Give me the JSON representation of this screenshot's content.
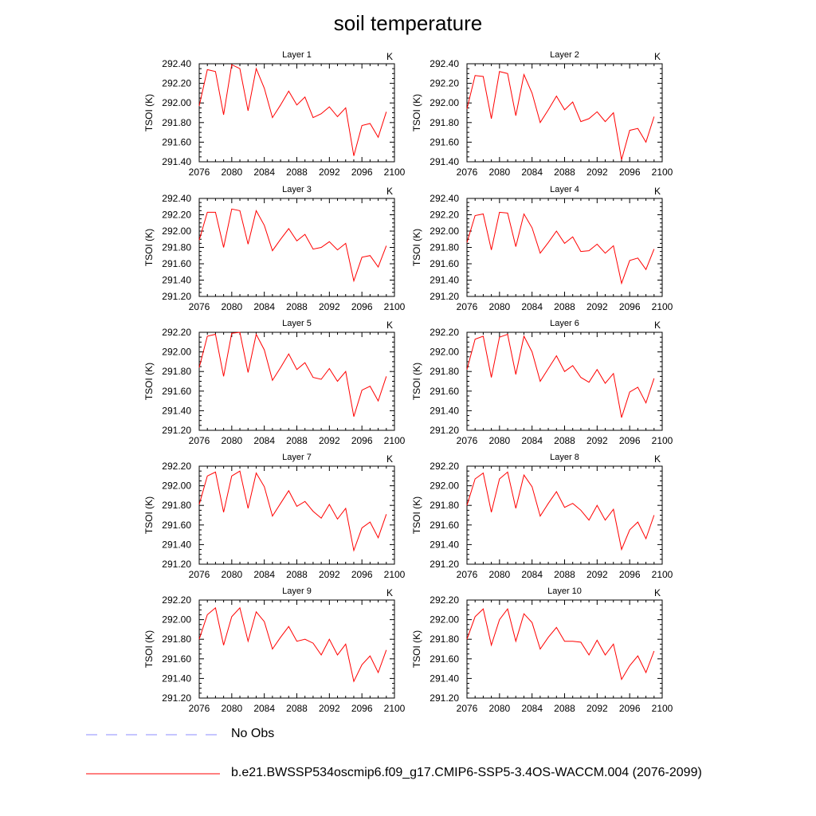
{
  "title": "soil temperature",
  "chart_data": {
    "type": "line",
    "figure_title": "soil temperature",
    "layout": "5 rows x 2 columns of panels",
    "shared": {
      "x": [
        2076,
        2077,
        2078,
        2079,
        2080,
        2081,
        2082,
        2083,
        2084,
        2085,
        2086,
        2087,
        2088,
        2089,
        2090,
        2091,
        2092,
        2093,
        2094,
        2095,
        2096,
        2097,
        2098,
        2099
      ],
      "xlim": [
        2076,
        2100
      ],
      "xticks": [
        "2076",
        "2080",
        "2084",
        "2088",
        "2092",
        "2096",
        "2100"
      ],
      "ylabel": "TSOI  (K)",
      "units": "K",
      "line_color": "#ff0000"
    },
    "panels": [
      {
        "title": "Layer 1",
        "ylim": [
          291.4,
          292.4
        ],
        "yticks": [
          "291.40",
          "291.60",
          "291.80",
          "292.00",
          "292.20",
          "292.40"
        ],
        "values": [
          291.97,
          292.34,
          292.32,
          291.88,
          292.39,
          292.35,
          291.92,
          292.35,
          292.15,
          291.85,
          291.98,
          292.12,
          291.98,
          292.06,
          291.85,
          291.89,
          291.96,
          291.86,
          291.95,
          291.46,
          291.77,
          291.79,
          291.65,
          291.91
        ]
      },
      {
        "title": "Layer 2",
        "ylim": [
          291.4,
          292.4
        ],
        "yticks": [
          "291.40",
          "291.60",
          "291.80",
          "292.00",
          "292.20",
          "292.40"
        ],
        "values": [
          291.94,
          292.28,
          292.27,
          291.84,
          292.32,
          292.3,
          291.87,
          292.29,
          292.1,
          291.8,
          291.93,
          292.07,
          291.93,
          292.01,
          291.81,
          291.84,
          291.91,
          291.81,
          291.9,
          291.42,
          291.72,
          291.74,
          291.6,
          291.86
        ]
      },
      {
        "title": "Layer 3",
        "ylim": [
          291.2,
          292.4
        ],
        "yticks": [
          "291.20",
          "291.40",
          "291.60",
          "291.80",
          "292.00",
          "292.20",
          "292.40"
        ],
        "values": [
          291.89,
          292.23,
          292.23,
          291.8,
          292.27,
          292.25,
          291.84,
          292.25,
          292.07,
          291.76,
          291.9,
          292.03,
          291.88,
          291.96,
          291.78,
          291.8,
          291.87,
          291.77,
          291.85,
          291.39,
          291.68,
          291.7,
          291.56,
          291.82
        ]
      },
      {
        "title": "Layer 4",
        "ylim": [
          291.2,
          292.4
        ],
        "yticks": [
          "291.20",
          "291.40",
          "291.60",
          "291.80",
          "292.00",
          "292.20",
          "292.40"
        ],
        "values": [
          291.86,
          292.19,
          292.21,
          291.77,
          292.23,
          292.22,
          291.81,
          292.21,
          292.04,
          291.73,
          291.86,
          292.0,
          291.85,
          291.93,
          291.75,
          291.76,
          291.84,
          291.73,
          291.82,
          291.36,
          291.64,
          291.67,
          291.53,
          291.78
        ]
      },
      {
        "title": "Layer 5",
        "ylim": [
          291.2,
          292.2
        ],
        "yticks": [
          "291.20",
          "291.40",
          "291.60",
          "291.80",
          "292.00",
          "292.20"
        ],
        "values": [
          291.84,
          292.16,
          292.18,
          291.75,
          292.19,
          292.2,
          291.79,
          292.18,
          292.02,
          291.71,
          291.84,
          291.98,
          291.82,
          291.89,
          291.74,
          291.72,
          291.83,
          291.7,
          291.8,
          291.34,
          291.61,
          291.65,
          291.5,
          291.75
        ]
      },
      {
        "title": "Layer 6",
        "ylim": [
          291.2,
          292.2
        ],
        "yticks": [
          "291.20",
          "291.40",
          "291.60",
          "291.80",
          "292.00",
          "292.20"
        ],
        "values": [
          291.82,
          292.13,
          292.16,
          291.74,
          292.15,
          292.18,
          291.77,
          292.16,
          292.0,
          291.7,
          291.83,
          291.96,
          291.8,
          291.86,
          291.74,
          291.69,
          291.82,
          291.68,
          291.78,
          291.33,
          291.59,
          291.64,
          291.48,
          291.73
        ]
      },
      {
        "title": "Layer 7",
        "ylim": [
          291.2,
          292.2
        ],
        "yticks": [
          "291.20",
          "291.40",
          "291.60",
          "291.80",
          "292.00",
          "292.20"
        ],
        "values": [
          291.81,
          292.1,
          292.14,
          291.73,
          292.1,
          292.15,
          291.77,
          292.13,
          291.99,
          291.69,
          291.82,
          291.95,
          291.79,
          291.84,
          291.74,
          291.67,
          291.81,
          291.66,
          291.77,
          291.34,
          291.57,
          291.63,
          291.47,
          291.71
        ]
      },
      {
        "title": "Layer 8",
        "ylim": [
          291.2,
          292.2
        ],
        "yticks": [
          "291.20",
          "291.40",
          "291.60",
          "291.80",
          "292.00",
          "292.20"
        ],
        "values": [
          291.8,
          292.07,
          292.13,
          291.73,
          292.07,
          292.14,
          291.77,
          292.11,
          291.99,
          291.69,
          291.82,
          291.94,
          291.78,
          291.82,
          291.75,
          291.65,
          291.8,
          291.65,
          291.76,
          291.35,
          291.55,
          291.63,
          291.46,
          291.7
        ]
      },
      {
        "title": "Layer 9",
        "ylim": [
          291.2,
          292.2
        ],
        "yticks": [
          "291.20",
          "291.40",
          "291.60",
          "291.80",
          "292.00",
          "292.20"
        ],
        "values": [
          291.8,
          292.05,
          292.12,
          291.74,
          292.03,
          292.12,
          291.78,
          292.08,
          291.98,
          291.7,
          291.82,
          291.93,
          291.78,
          291.8,
          291.76,
          291.64,
          291.8,
          291.64,
          291.75,
          291.37,
          291.54,
          291.63,
          291.46,
          291.69
        ]
      },
      {
        "title": "Layer 10",
        "ylim": [
          291.2,
          292.2
        ],
        "yticks": [
          "291.20",
          "291.40",
          "291.60",
          "291.80",
          "292.00",
          "292.20"
        ],
        "values": [
          291.8,
          292.03,
          292.11,
          291.74,
          292.0,
          292.11,
          291.78,
          292.06,
          291.97,
          291.7,
          291.82,
          291.92,
          291.78,
          291.78,
          291.77,
          291.64,
          291.79,
          291.64,
          291.75,
          291.39,
          291.53,
          291.63,
          291.46,
          291.68
        ]
      }
    ]
  },
  "legend": {
    "items": [
      {
        "label": "No Obs",
        "style": "dashed",
        "color": "#8c8cff"
      },
      {
        "label": "b.e21.BWSSP534oscmip6.f09_g17.CMIP6-SSP5-3.4OS-WACCM.004 (2076-2099)",
        "style": "solid",
        "color": "#ff0000"
      }
    ]
  }
}
